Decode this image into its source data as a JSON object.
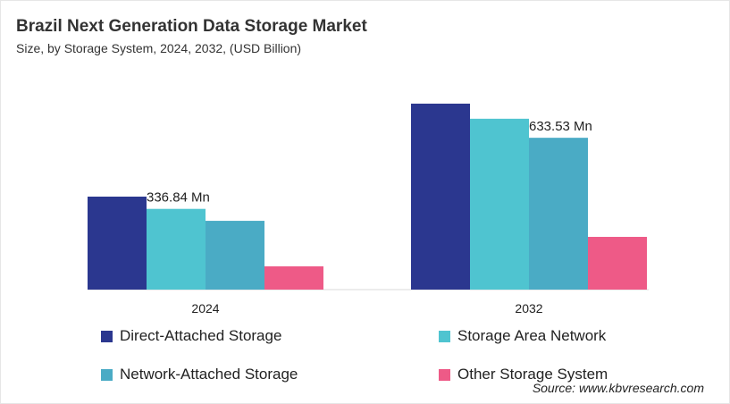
{
  "chart_data": {
    "type": "bar",
    "title": "Brazil Next Generation Data Storage Market",
    "subtitle": "Size, by Storage System, 2024, 2032, (USD Billion)",
    "categories": [
      "2024",
      "2032"
    ],
    "series": [
      {
        "name": "Direct-Attached Storage",
        "color": "#2b378f",
        "values": [
          388,
          776
        ]
      },
      {
        "name": "Storage Area Network",
        "color": "#4fc4d0",
        "values": [
          336.84,
          713
        ]
      },
      {
        "name": "Network-Attached Storage",
        "color": "#4aabc5",
        "values": [
          287,
          633.53
        ]
      },
      {
        "name": "Other Storage System",
        "color": "#ee5a87",
        "values": [
          97,
          220
        ]
      }
    ],
    "data_labels": [
      {
        "series": 1,
        "category": 0,
        "text": "336.84 Mn"
      },
      {
        "series": 2,
        "category": 1,
        "text": "633.53 Mn"
      }
    ],
    "ylim": [
      0,
      840
    ],
    "grid": false,
    "legend": "bottom",
    "source": "Source: www.kbvresearch.com"
  }
}
